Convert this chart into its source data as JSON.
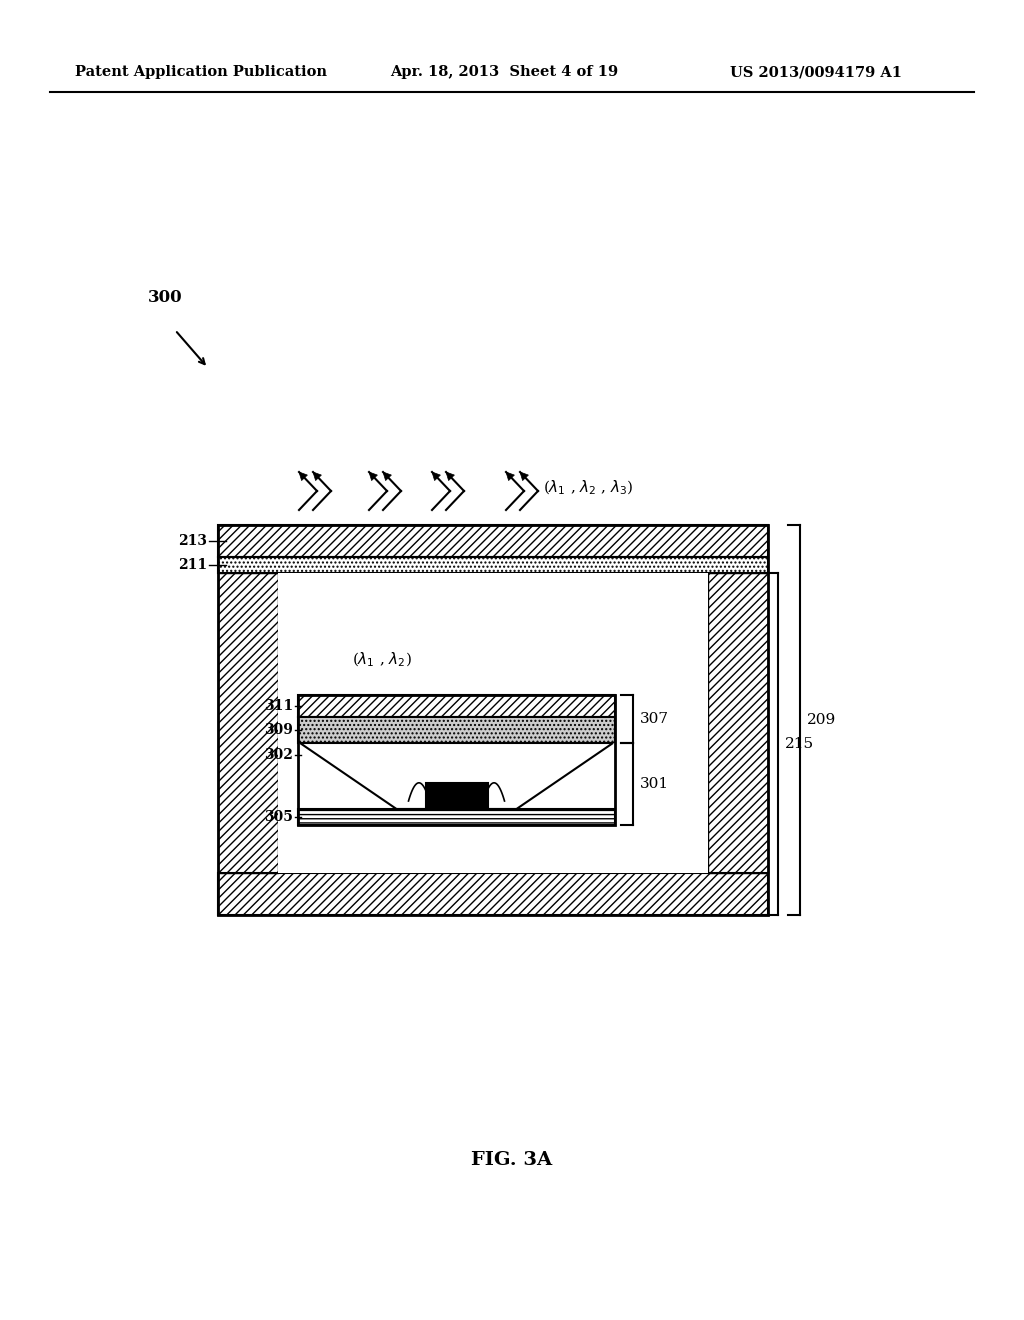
{
  "bg_color": "#ffffff",
  "header_left": "Patent Application Publication",
  "header_mid": "Apr. 18, 2013  Sheet 4 of 19",
  "header_right": "US 2013/0094179 A1",
  "fig_label": "FIG. 3A",
  "label_300": "300",
  "label_209": "209",
  "label_215": "215",
  "label_213": "213",
  "label_211": "211",
  "label_307": "307",
  "label_301": "301",
  "label_311": "311",
  "label_309": "309",
  "label_302": "302",
  "label_305": "305"
}
